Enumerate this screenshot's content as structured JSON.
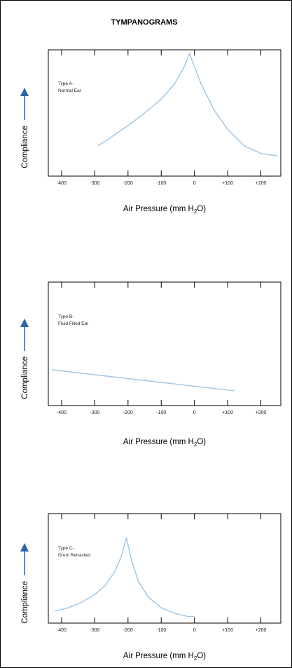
{
  "title": "TYMPANOGRAMS",
  "colors": {
    "curve": "#9ec4e6",
    "arrow": "#2e63a8",
    "axis": "#000000"
  },
  "chart_data": [
    {
      "type": "line",
      "xlabel": "Air Pressure (mm H",
      "xlabel_sub": "2",
      "xlabel_end": "O)",
      "ylabel": "Compliance",
      "annotation": [
        "Type A-",
        "Normal Ear"
      ],
      "xlim": [
        -440,
        260
      ],
      "ylim": [
        0,
        1
      ],
      "x_ticks": [
        -400,
        -300,
        -200,
        -100,
        0,
        100,
        200
      ],
      "x_tick_labels": [
        "-400",
        "-300",
        "-200",
        "-100",
        "0",
        "+100",
        "+200"
      ],
      "x": [
        -290,
        -250,
        -200,
        -150,
        -100,
        -60,
        -30,
        -15,
        20,
        60,
        100,
        150,
        200,
        250
      ],
      "y": [
        0.24,
        0.31,
        0.4,
        0.5,
        0.61,
        0.73,
        0.87,
        0.97,
        0.73,
        0.52,
        0.37,
        0.24,
        0.18,
        0.16
      ],
      "grid": false
    },
    {
      "type": "line",
      "xlabel": "Air Pressure (mm H",
      "xlabel_sub": "2",
      "xlabel_end": "O)",
      "ylabel": "Compliance",
      "annotation": [
        "Type B-",
        "Fluid Filled Ear"
      ],
      "xlim": [
        -440,
        260
      ],
      "ylim": [
        0,
        1
      ],
      "x_ticks": [
        -400,
        -300,
        -200,
        -100,
        0,
        100,
        200
      ],
      "x_tick_labels": [
        "-400",
        "-300",
        "-200",
        "-100",
        "0",
        "+100",
        "+200"
      ],
      "x": [
        -430,
        120
      ],
      "y": [
        0.29,
        0.12
      ],
      "grid": false
    },
    {
      "type": "line",
      "xlabel": "Air Pressure (mm H",
      "xlabel_sub": "2",
      "xlabel_end": "O)",
      "ylabel": "Compliance",
      "annotation": [
        "Type C-",
        "Drum Retracted"
      ],
      "xlim": [
        -440,
        260
      ],
      "ylim": [
        0,
        1
      ],
      "x_ticks": [
        -400,
        -300,
        -200,
        -100,
        0,
        100,
        200
      ],
      "x_tick_labels": [
        "-400",
        "-300",
        "-200",
        "-100",
        "0",
        "+100",
        "+200"
      ],
      "x": [
        -420,
        -380,
        -340,
        -300,
        -270,
        -240,
        -220,
        -205,
        -190,
        -170,
        -140,
        -100,
        -60,
        -20,
        0
      ],
      "y": [
        0.11,
        0.14,
        0.19,
        0.26,
        0.34,
        0.47,
        0.61,
        0.78,
        0.58,
        0.39,
        0.24,
        0.14,
        0.09,
        0.06,
        0.06
      ],
      "grid": false
    }
  ]
}
